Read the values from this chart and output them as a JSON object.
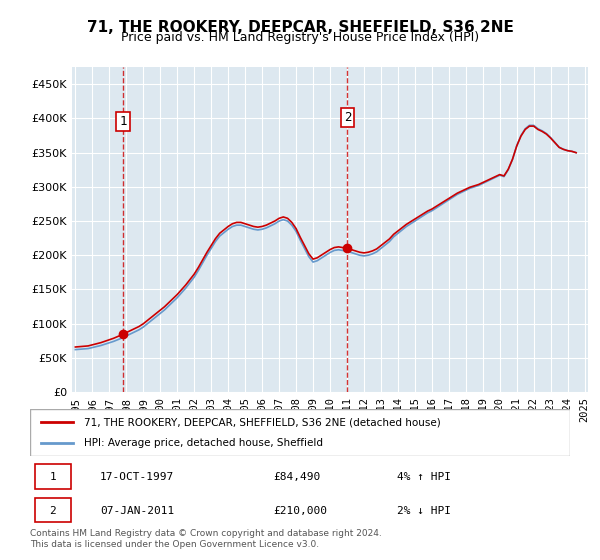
{
  "title": "71, THE ROOKERY, DEEPCAR, SHEFFIELD, S36 2NE",
  "subtitle": "Price paid vs. HM Land Registry's House Price Index (HPI)",
  "legend_line1": "71, THE ROOKERY, DEEPCAR, SHEFFIELD, S36 2NE (detached house)",
  "legend_line2": "HPI: Average price, detached house, Sheffield",
  "annotation1_label": "1",
  "annotation1_date": "17-OCT-1997",
  "annotation1_price": "£84,490",
  "annotation1_hpi": "4% ↑ HPI",
  "annotation2_label": "2",
  "annotation2_date": "07-JAN-2011",
  "annotation2_price": "£210,000",
  "annotation2_hpi": "2% ↓ HPI",
  "footnote": "Contains HM Land Registry data © Crown copyright and database right 2024.\nThis data is licensed under the Open Government Licence v3.0.",
  "ylim": [
    0,
    475000
  ],
  "yticks": [
    0,
    50000,
    100000,
    150000,
    200000,
    250000,
    300000,
    350000,
    400000,
    450000
  ],
  "ytick_labels": [
    "£0",
    "£50K",
    "£100K",
    "£150K",
    "£200K",
    "£250K",
    "£300K",
    "£350K",
    "£400K",
    "£450K"
  ],
  "sale1_year": 1997.8,
  "sale1_price": 84490,
  "sale1_vline_x": 1997.8,
  "sale2_year": 2011.03,
  "sale2_price": 210000,
  "sale2_vline_x": 2011.03,
  "price_line_color": "#cc0000",
  "hpi_line_color": "#6699cc",
  "vline_color": "#cc0000",
  "background_color": "#dde8f0",
  "plot_bg_color": "#dde8f0",
  "grid_color": "#ffffff",
  "title_fontsize": 11,
  "subtitle_fontsize": 9,
  "hpi_data_x": [
    1995,
    1995.25,
    1995.5,
    1995.75,
    1996,
    1996.25,
    1996.5,
    1996.75,
    1997,
    1997.25,
    1997.5,
    1997.75,
    1998,
    1998.25,
    1998.5,
    1998.75,
    1999,
    1999.25,
    1999.5,
    1999.75,
    2000,
    2000.25,
    2000.5,
    2000.75,
    2001,
    2001.25,
    2001.5,
    2001.75,
    2002,
    2002.25,
    2002.5,
    2002.75,
    2003,
    2003.25,
    2003.5,
    2003.75,
    2004,
    2004.25,
    2004.5,
    2004.75,
    2005,
    2005.25,
    2005.5,
    2005.75,
    2006,
    2006.25,
    2006.5,
    2006.75,
    2007,
    2007.25,
    2007.5,
    2007.75,
    2008,
    2008.25,
    2008.5,
    2008.75,
    2009,
    2009.25,
    2009.5,
    2009.75,
    2010,
    2010.25,
    2010.5,
    2010.75,
    2011,
    2011.25,
    2011.5,
    2011.75,
    2012,
    2012.25,
    2012.5,
    2012.75,
    2013,
    2013.25,
    2013.5,
    2013.75,
    2014,
    2014.25,
    2014.5,
    2014.75,
    2015,
    2015.25,
    2015.5,
    2015.75,
    2016,
    2016.25,
    2016.5,
    2016.75,
    2017,
    2017.25,
    2017.5,
    2017.75,
    2018,
    2018.25,
    2018.5,
    2018.75,
    2019,
    2019.25,
    2019.5,
    2019.75,
    2020,
    2020.25,
    2020.5,
    2020.75,
    2021,
    2021.25,
    2021.5,
    2021.75,
    2022,
    2022.25,
    2022.5,
    2022.75,
    2023,
    2023.25,
    2023.5,
    2023.75,
    2024,
    2024.25,
    2024.5
  ],
  "hpi_data_y": [
    62000,
    62500,
    63000,
    63500,
    65000,
    66500,
    68000,
    70000,
    72000,
    74000,
    76500,
    79000,
    82000,
    85000,
    88000,
    91000,
    95000,
    100000,
    105000,
    110000,
    115000,
    120000,
    126000,
    132000,
    138000,
    145000,
    152000,
    160000,
    168000,
    178000,
    189000,
    200000,
    210000,
    220000,
    228000,
    233000,
    238000,
    242000,
    244000,
    244000,
    242000,
    240000,
    238000,
    237000,
    238000,
    240000,
    243000,
    246000,
    250000,
    252000,
    250000,
    244000,
    235000,
    222000,
    210000,
    198000,
    190000,
    192000,
    196000,
    200000,
    204000,
    207000,
    208000,
    207000,
    206000,
    204000,
    202000,
    200000,
    199000,
    200000,
    202000,
    205000,
    210000,
    215000,
    220000,
    227000,
    232000,
    237000,
    242000,
    246000,
    250000,
    254000,
    258000,
    262000,
    265000,
    269000,
    273000,
    277000,
    281000,
    285000,
    289000,
    292000,
    295000,
    298000,
    300000,
    302000,
    305000,
    308000,
    311000,
    314000,
    317000,
    315000,
    325000,
    340000,
    360000,
    375000,
    385000,
    390000,
    390000,
    385000,
    382000,
    378000,
    372000,
    365000,
    358000,
    355000,
    353000,
    352000,
    350000
  ],
  "price_data_x": [
    1995,
    1997.8,
    2011.03,
    2024.5
  ],
  "price_data_y": [
    62000,
    84490,
    210000,
    350000
  ]
}
